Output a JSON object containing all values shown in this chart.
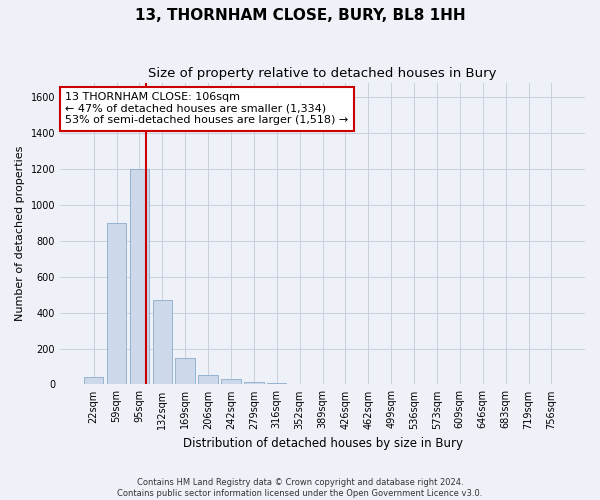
{
  "title": "13, THORNHAM CLOSE, BURY, BL8 1HH",
  "subtitle": "Size of property relative to detached houses in Bury",
  "xlabel": "Distribution of detached houses by size in Bury",
  "ylabel": "Number of detached properties",
  "categories": [
    "22sqm",
    "59sqm",
    "95sqm",
    "132sqm",
    "169sqm",
    "206sqm",
    "242sqm",
    "279sqm",
    "316sqm",
    "352sqm",
    "389sqm",
    "426sqm",
    "462sqm",
    "499sqm",
    "536sqm",
    "573sqm",
    "609sqm",
    "646sqm",
    "683sqm",
    "719sqm",
    "756sqm"
  ],
  "values": [
    40,
    900,
    1200,
    470,
    150,
    55,
    28,
    15,
    10,
    5,
    0,
    0,
    0,
    0,
    0,
    0,
    0,
    0,
    0,
    0,
    0
  ],
  "bar_color": "#cdd9ea",
  "bar_edge_color": "#8aabcc",
  "vline_color": "#cc0000",
  "annotation_line1": "13 THORNHAM CLOSE: 106sqm",
  "annotation_line2": "← 47% of detached houses are smaller (1,334)",
  "annotation_line3": "53% of semi-detached houses are larger (1,518) →",
  "annotation_box_color": "#ffffff",
  "annotation_box_edge": "#cc0000",
  "ylim": [
    0,
    1680
  ],
  "yticks": [
    0,
    200,
    400,
    600,
    800,
    1000,
    1200,
    1400,
    1600
  ],
  "footer": "Contains HM Land Registry data © Crown copyright and database right 2024.\nContains public sector information licensed under the Open Government Licence v3.0.",
  "bg_color": "#eef2f8",
  "plot_bg_color": "#eef2f8",
  "grid_color": "#c8d0de",
  "title_fontsize": 11,
  "subtitle_fontsize": 9.5,
  "tick_fontsize": 7,
  "ylabel_fontsize": 8,
  "xlabel_fontsize": 8.5,
  "annotation_fontsize": 8
}
